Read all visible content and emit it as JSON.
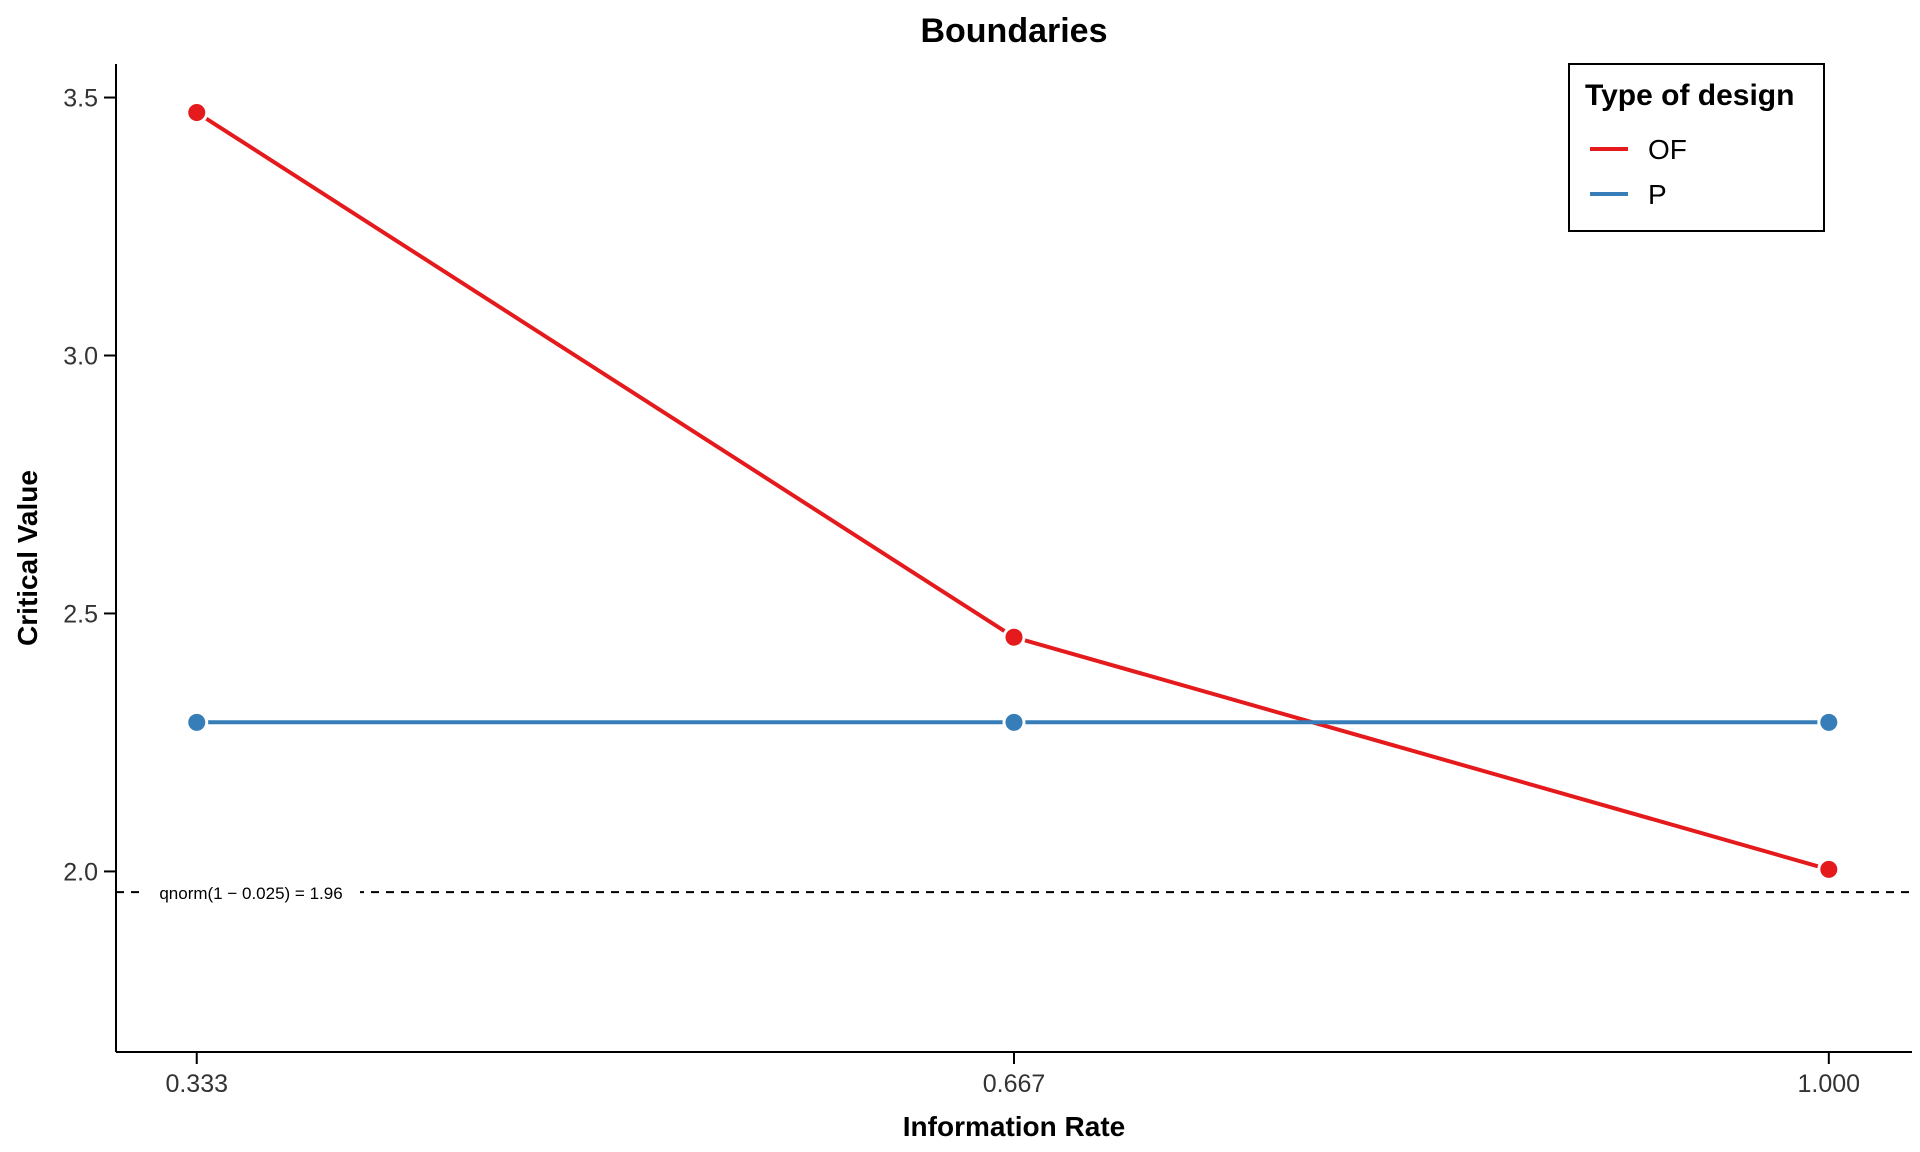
{
  "chart_data": {
    "type": "line",
    "title": "Boundaries",
    "xlabel": "Information Rate",
    "ylabel": "Critical Value",
    "x": [
      0.333,
      0.667,
      1.0
    ],
    "x_tick_labels": [
      "0.333",
      "0.667",
      "1.000"
    ],
    "y_ticks": [
      2.0,
      2.5,
      3.0,
      3.5
    ],
    "y_tick_labels": [
      "2.0",
      "2.5",
      "3.0",
      "3.5"
    ],
    "xlim": [
      0.3,
      1.034
    ],
    "ylim": [
      1.65,
      3.565
    ],
    "grid": false,
    "legend": {
      "title": "Type of design",
      "position": "top-right"
    },
    "series": [
      {
        "name": "OF",
        "color": "#e41a1c",
        "values": [
          3.471,
          2.454,
          2.004
        ]
      },
      {
        "name": "P",
        "color": "#377eb8",
        "values": [
          2.289,
          2.289,
          2.289
        ]
      }
    ],
    "reference_line": {
      "y": 1.96,
      "label": "qnorm(1 − 0.025) = 1.96",
      "style": "dashed"
    }
  }
}
